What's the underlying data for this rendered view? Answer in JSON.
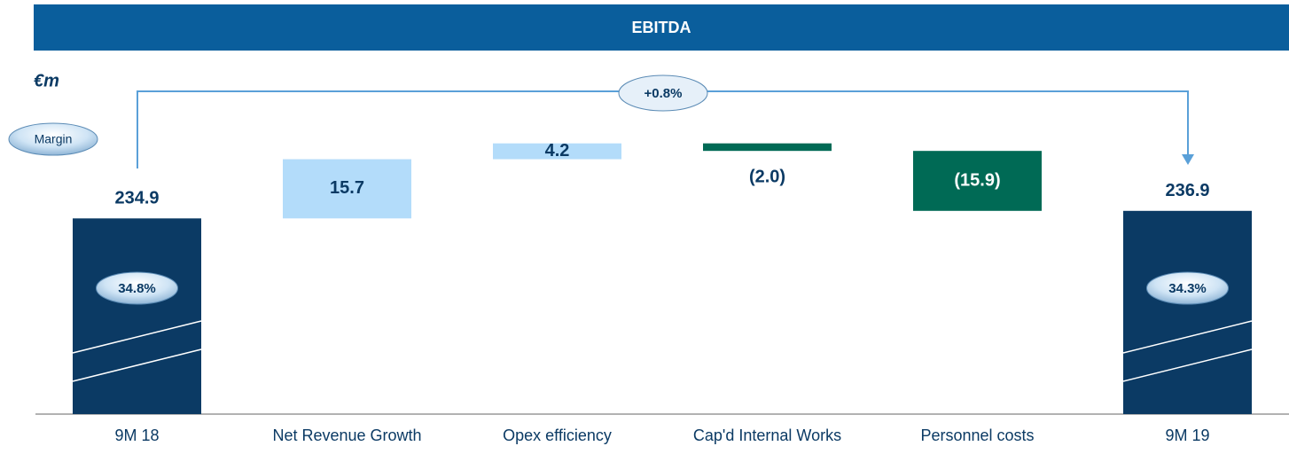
{
  "chart_data": {
    "type": "waterfall",
    "title": "EBITDA",
    "unit_label": "€m",
    "annotation": "+0.8%",
    "categories": [
      "9M 18",
      "Net Revenue Growth",
      "Opex efficiency",
      "Cap'd Internal Works",
      "Personnel costs",
      "9M 19"
    ],
    "values": [
      234.9,
      15.7,
      4.2,
      -2.0,
      -15.9,
      236.9
    ],
    "value_labels": [
      "234.9",
      "15.7",
      "4.2",
      "(2.0)",
      "(15.9)",
      "236.9"
    ],
    "totals": [
      true,
      false,
      false,
      false,
      false,
      true
    ],
    "colors": {
      "total": "#0b3a64",
      "increase": "#b3dcfa",
      "decrease": "#006a55"
    },
    "margin": {
      "name": "Margin",
      "values": [
        34.8,
        null,
        null,
        null,
        null,
        34.3
      ],
      "value_labels": [
        "34.8%",
        null,
        null,
        null,
        null,
        "34.3%"
      ]
    },
    "ylim": [
      183,
      290
    ]
  }
}
